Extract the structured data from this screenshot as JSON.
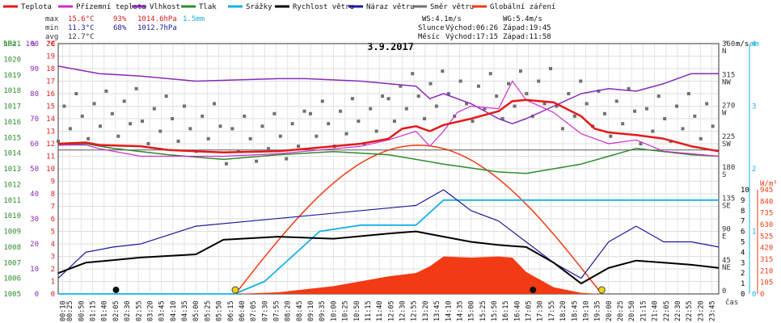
{
  "legend": [
    {
      "label": "Teplota",
      "color": "#e21a1a"
    },
    {
      "label": "Přízemní teplota",
      "color": "#cc2fcc"
    },
    {
      "label": "Vlhkost",
      "color": "#8a2ab8"
    },
    {
      "label": "Tlak",
      "color": "#2e8b2e"
    },
    {
      "label": "Srážky",
      "color": "#17b0e0"
    },
    {
      "label": "Rychlost větru",
      "color": "#000000"
    },
    {
      "label": "Náraz větru",
      "color": "#1a1a9a"
    },
    {
      "label": "Směr větru",
      "color": "#707070"
    },
    {
      "label": "Globální záření",
      "color": "#f23a14"
    }
  ],
  "stats": {
    "max_label": "max",
    "max_temp": "15.6°C",
    "max_hum": "93%",
    "max_press": "1014.6hPa",
    "max_rain": "1.5mm",
    "min_label": "min",
    "min_temp": "11.3°C",
    "min_hum": "68%",
    "min_press": "1012.7hPa",
    "avg_label": "avg",
    "avg_temp": "12.7°C"
  },
  "info": {
    "ws": "WS:4.1m/s",
    "wg": "WG:5.4m/s",
    "sun_label": "Slunce",
    "sun_rise": "Východ:06:26",
    "sun_set": "Západ:19:45",
    "moon_label": "Měsíc",
    "moon_rise": "Východ:17:15",
    "moon_set": "Západ:11:58"
  },
  "date": "3.9.2017",
  "axis_units": {
    "hpa": "hPa",
    "pct": "%",
    "degc": "°C",
    "ms": "m/s",
    "mm": "mm",
    "wm2": "W/m²",
    "deg": "°",
    "cas": "čas"
  },
  "chart_data": {
    "type": "line",
    "title": "3.9.2017",
    "x_ticks": [
      "00:10",
      "00:25",
      "00:50",
      "01:15",
      "01:40",
      "02:05",
      "02:30",
      "02:55",
      "03:20",
      "03:45",
      "04:10",
      "04:35",
      "05:00",
      "05:25",
      "05:50",
      "06:15",
      "06:40",
      "07:05",
      "07:30",
      "07:55",
      "08:20",
      "08:45",
      "09:10",
      "09:35",
      "10:00",
      "10:25",
      "10:50",
      "11:15",
      "11:40",
      "12:05",
      "12:30",
      "12:55",
      "13:20",
      "13:45",
      "14:10",
      "14:35",
      "15:00",
      "15:25",
      "15:50",
      "16:15",
      "16:40",
      "17:05",
      "17:30",
      "17:55",
      "18:20",
      "18:45",
      "19:10",
      "19:35",
      "20:00",
      "20:25",
      "20:50",
      "21:15",
      "21:40",
      "22:05",
      "22:30",
      "22:55",
      "23:20",
      "23:45"
    ],
    "axes": {
      "pressure_hpa": {
        "ticks": [
          1005,
          1006,
          1007,
          1008,
          1009,
          1010,
          1011,
          1012,
          1013,
          1014,
          1015,
          1016,
          1017,
          1018,
          1019,
          1020,
          1021
        ]
      },
      "humidity_pct": {
        "ticks": [
          0,
          10,
          20,
          30,
          40,
          50,
          60,
          70,
          80,
          90,
          100
        ]
      },
      "temperature_c": {
        "ticks": [
          0,
          1,
          2,
          3,
          4,
          5,
          6,
          7,
          8,
          9,
          10,
          11,
          12,
          13,
          14,
          15,
          16,
          17,
          18,
          19,
          20
        ]
      },
      "wind_ms": {
        "ticks": [
          0,
          1,
          2,
          3,
          4,
          5,
          6,
          7,
          8,
          9,
          10
        ]
      },
      "direction_deg": {
        "ticks": [
          "0",
          "45 NE",
          "90 E",
          "135 SE",
          "180 S",
          "225 SW",
          "270 W",
          "315 NW",
          "360 N"
        ]
      },
      "rain_mm": {
        "ticks": [
          0,
          1,
          2,
          3,
          4
        ]
      },
      "radiation_wm2": {
        "ticks": [
          0,
          105,
          210,
          315,
          420,
          525,
          630,
          735,
          840,
          945
        ]
      }
    },
    "series": [
      {
        "name": "Teplota",
        "unit": "°C",
        "points": [
          [
            0,
            12.0
          ],
          [
            1,
            12.1
          ],
          [
            1.5,
            11.9
          ],
          [
            3,
            11.8
          ],
          [
            4,
            11.5
          ],
          [
            6,
            11.3
          ],
          [
            8,
            11.4
          ],
          [
            9,
            11.6
          ],
          [
            11,
            12.0
          ],
          [
            12,
            12.4
          ],
          [
            12.5,
            13.2
          ],
          [
            13,
            13.4
          ],
          [
            13.5,
            13.0
          ],
          [
            14,
            13.5
          ],
          [
            15,
            14.0
          ],
          [
            16,
            14.6
          ],
          [
            16.5,
            15.4
          ],
          [
            17,
            15.5
          ],
          [
            18,
            15.3
          ],
          [
            19,
            14.2
          ],
          [
            19.5,
            13.2
          ],
          [
            20,
            12.9
          ],
          [
            21,
            12.7
          ],
          [
            22,
            12.4
          ],
          [
            23,
            11.8
          ],
          [
            24,
            11.4
          ]
        ]
      },
      {
        "name": "Přízemní teplota",
        "unit": "°C",
        "points": [
          [
            0,
            11.9
          ],
          [
            1,
            11.9
          ],
          [
            1.5,
            11.6
          ],
          [
            3,
            11.0
          ],
          [
            6,
            11.0
          ],
          [
            8,
            11.2
          ],
          [
            9,
            11.4
          ],
          [
            11,
            11.8
          ],
          [
            12,
            12.3
          ],
          [
            13,
            13.0
          ],
          [
            13.5,
            11.8
          ],
          [
            14,
            13.0
          ],
          [
            14.5,
            14.5
          ],
          [
            15,
            15.0
          ],
          [
            16,
            14.8
          ],
          [
            16.5,
            17.0
          ],
          [
            17,
            15.5
          ],
          [
            18,
            14.5
          ],
          [
            19,
            12.8
          ],
          [
            19.5,
            12.4
          ],
          [
            20,
            12.0
          ],
          [
            21,
            12.3
          ],
          [
            22,
            11.4
          ],
          [
            23,
            11.2
          ],
          [
            24,
            11.0
          ]
        ]
      },
      {
        "name": "Vlhkost",
        "unit": "%",
        "points": [
          [
            0,
            91
          ],
          [
            1,
            89
          ],
          [
            1.5,
            88
          ],
          [
            3,
            87
          ],
          [
            5,
            85
          ],
          [
            8,
            86
          ],
          [
            9,
            86
          ],
          [
            11,
            85
          ],
          [
            12,
            84
          ],
          [
            13,
            83
          ],
          [
            13.5,
            78
          ],
          [
            14,
            80
          ],
          [
            15,
            76
          ],
          [
            16,
            70
          ],
          [
            16.5,
            68
          ],
          [
            17,
            70
          ],
          [
            18,
            75
          ],
          [
            19,
            80
          ],
          [
            20,
            82
          ],
          [
            21,
            81
          ],
          [
            22,
            84
          ],
          [
            23,
            88
          ],
          [
            24,
            88
          ]
        ]
      },
      {
        "name": "Tlak",
        "unit": "hPa",
        "points": [
          [
            0,
            1014.5
          ],
          [
            1,
            1014.6
          ],
          [
            2,
            1014.3
          ],
          [
            4,
            1013.9
          ],
          [
            6,
            1013.6
          ],
          [
            8,
            1013.9
          ],
          [
            10,
            1014.1
          ],
          [
            12,
            1013.9
          ],
          [
            14,
            1013.3
          ],
          [
            16,
            1012.8
          ],
          [
            17,
            1012.7
          ],
          [
            18,
            1013.0
          ],
          [
            19,
            1013.3
          ],
          [
            20,
            1013.8
          ],
          [
            21,
            1014.3
          ],
          [
            22,
            1014.1
          ],
          [
            23,
            1013.9
          ],
          [
            24,
            1013.8
          ]
        ]
      },
      {
        "name": "Srážky",
        "unit": "mm",
        "points": [
          [
            0,
            0
          ],
          [
            6.4,
            0
          ],
          [
            7.5,
            0.2
          ],
          [
            8.5,
            0.6
          ],
          [
            9.5,
            1.0
          ],
          [
            11,
            1.1
          ],
          [
            13,
            1.1
          ],
          [
            14,
            1.5
          ],
          [
            24,
            1.5
          ]
        ]
      },
      {
        "name": "Rychlost větru",
        "unit": "m/s",
        "points": [
          [
            0,
            2.0
          ],
          [
            1,
            3.0
          ],
          [
            3,
            3.5
          ],
          [
            5,
            3.8
          ],
          [
            6,
            5.2
          ],
          [
            8,
            5.5
          ],
          [
            10,
            5.3
          ],
          [
            12,
            5.8
          ],
          [
            13,
            6.0
          ],
          [
            14,
            5.5
          ],
          [
            15,
            5.0
          ],
          [
            16,
            4.7
          ],
          [
            17,
            4.5
          ],
          [
            18,
            3.0
          ],
          [
            19,
            1.0
          ],
          [
            20,
            2.5
          ],
          [
            21,
            3.2
          ],
          [
            22,
            3.0
          ],
          [
            23,
            2.8
          ],
          [
            24,
            2.5
          ]
        ]
      },
      {
        "name": "Náraz větru",
        "unit": "m/s",
        "points": [
          [
            0,
            1.5
          ],
          [
            1,
            4.0
          ],
          [
            2,
            4.5
          ],
          [
            3,
            4.8
          ],
          [
            5,
            6.5
          ],
          [
            7,
            7.0
          ],
          [
            9,
            7.5
          ],
          [
            11,
            8.0
          ],
          [
            13,
            8.5
          ],
          [
            14,
            10.0
          ],
          [
            15,
            8.0
          ],
          [
            16,
            7.0
          ],
          [
            17,
            5.0
          ],
          [
            18,
            3.0
          ],
          [
            19,
            1.5
          ],
          [
            20,
            5.0
          ],
          [
            21,
            6.5
          ],
          [
            22,
            5.0
          ],
          [
            23,
            5.0
          ],
          [
            24,
            4.5
          ]
        ]
      },
      {
        "name": "Globální záření",
        "unit": "W/m²",
        "points": [
          [
            6.4,
            0
          ],
          [
            8,
            15
          ],
          [
            10,
            70
          ],
          [
            12,
            160
          ],
          [
            13,
            190
          ],
          [
            13.5,
            250
          ],
          [
            14,
            340
          ],
          [
            15,
            330
          ],
          [
            16,
            340
          ],
          [
            16.5,
            330
          ],
          [
            17,
            200
          ],
          [
            18,
            60
          ],
          [
            19,
            10
          ],
          [
            19.7,
            0
          ]
        ]
      }
    ],
    "radiation_theoretical_max_wm2": 1120,
    "sunrise": "06:26",
    "sunset": "19:45",
    "moonrise": "17:15",
    "moonset": "11:58"
  }
}
